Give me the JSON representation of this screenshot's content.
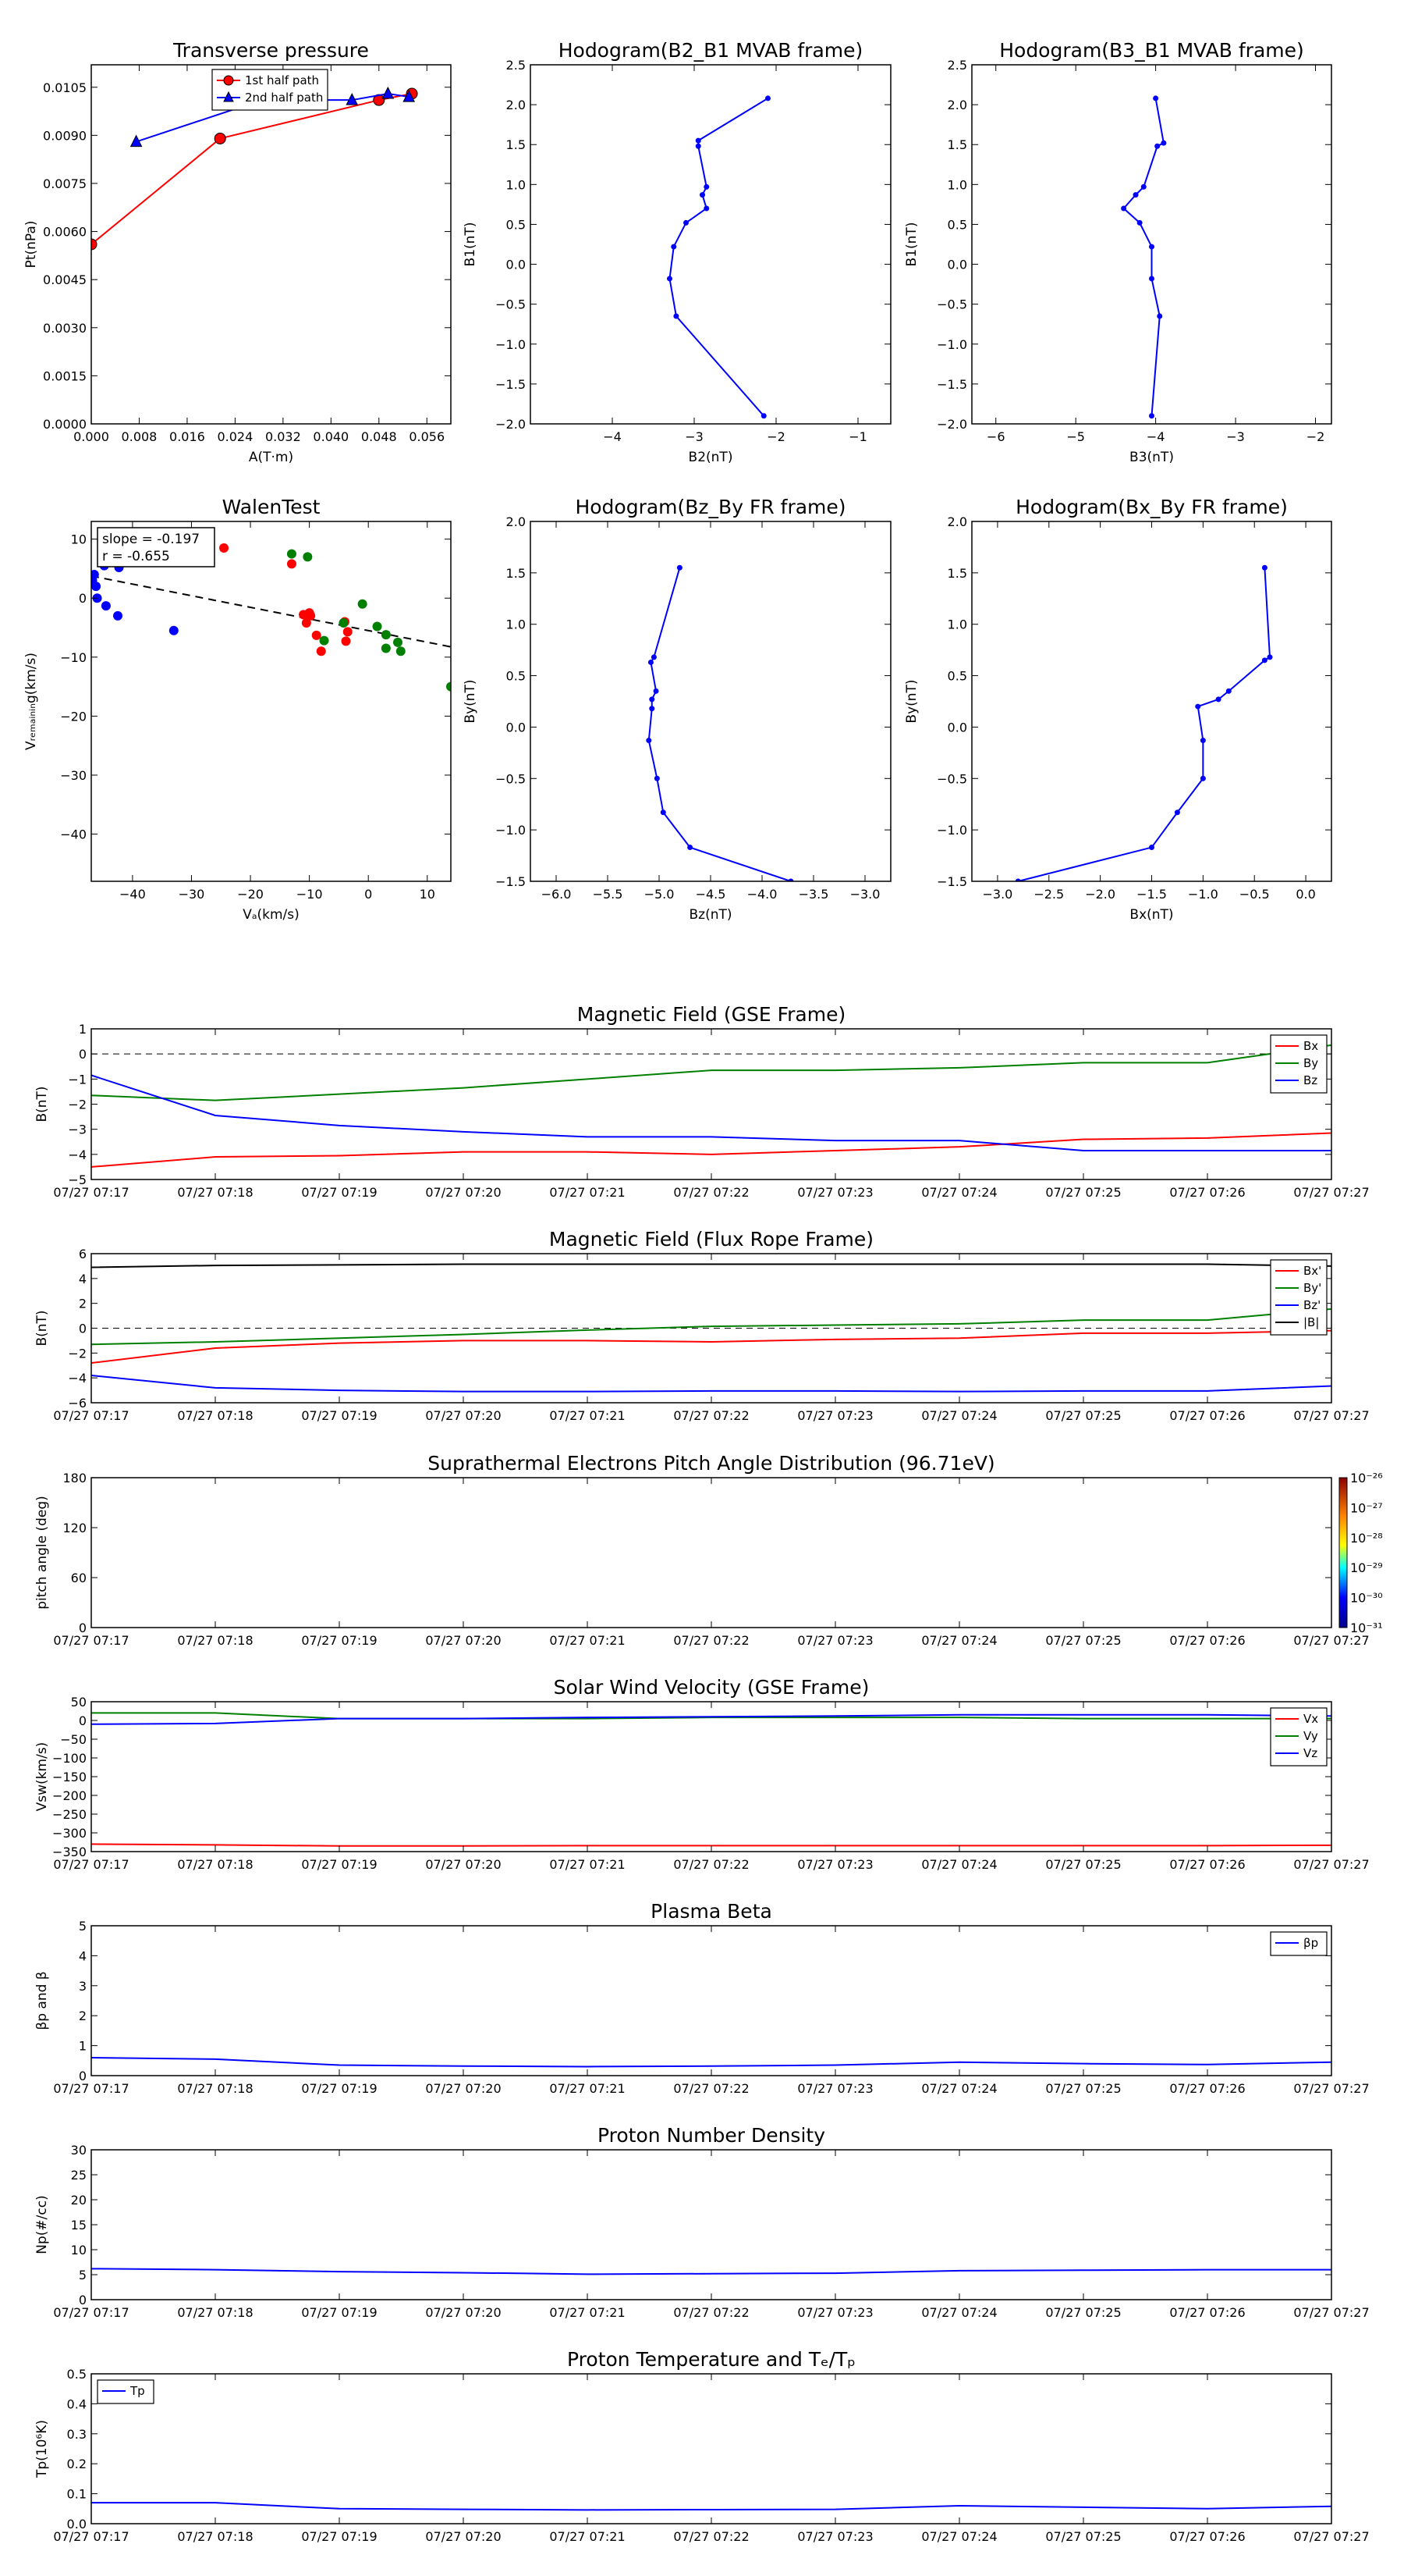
{
  "panels": [
    {
      "id": "transverse-pressure",
      "chart_data": {
        "type": "line",
        "title": "Transverse pressure",
        "xlabel": "A(T·m)",
        "ylabel": "Pt(nPa)",
        "xlim": [
          0,
          0.06
        ],
        "ylim": [
          0,
          0.0112
        ],
        "xticks": [
          0.0,
          0.008,
          0.016,
          0.024,
          0.032,
          0.04,
          0.048,
          0.056
        ],
        "xtick_labels": [
          "0.000",
          "0.008",
          "0.016",
          "0.024",
          "0.032",
          "0.040",
          "0.048",
          "0.056"
        ],
        "yticks": [
          0.0,
          0.0015,
          0.003,
          0.0045,
          0.006,
          0.0075,
          0.009,
          0.0105
        ],
        "ytick_labels": [
          "0.0000",
          "0.0015",
          "0.0030",
          "0.0045",
          "0.0060",
          "0.0075",
          "0.0090",
          "0.0105"
        ],
        "legend": "top-center",
        "series": [
          {
            "name": "1st half path",
            "color": "#ff0000",
            "marker": "circle",
            "x": [
              0.0,
              0.0215,
              0.048,
              0.0535
            ],
            "y": [
              0.0056,
              0.0089,
              0.0101,
              0.0103
            ]
          },
          {
            "name": "2nd half path",
            "color": "#0000ff",
            "marker": "triangle",
            "x": [
              0.0075,
              0.0285,
              0.0435,
              0.0495,
              0.053
            ],
            "y": [
              0.0088,
              0.0101,
              0.0101,
              0.0103,
              0.0102
            ]
          }
        ]
      }
    },
    {
      "id": "hodogram-b2-b1",
      "chart_data": {
        "type": "line",
        "title": "Hodogram(B2_B1 MVAB frame)",
        "xlabel": "B2(nT)",
        "ylabel": "B1(nT)",
        "xlim": [
          -5,
          -0.6
        ],
        "ylim": [
          -2,
          2.5
        ],
        "xticks": [
          -4,
          -3,
          -2,
          -1
        ],
        "xtick_labels": [
          "−4",
          "−3",
          "−2",
          "−1"
        ],
        "yticks": [
          -2,
          -1.5,
          -1,
          -0.5,
          0,
          0.5,
          1,
          1.5,
          2,
          2.5
        ],
        "ytick_labels": [
          "−2.0",
          "−1.5",
          "−1.0",
          "−0.5",
          "0.0",
          "0.5",
          "1.0",
          "1.5",
          "2.0",
          "2.5"
        ],
        "series": [
          {
            "name": "",
            "color": "#0000ff",
            "marker": "dot",
            "x": [
              -2.1,
              -2.95,
              -2.95,
              -2.85,
              -2.9,
              -2.85,
              -3.1,
              -3.25,
              -3.3,
              -3.22,
              -2.15
            ],
            "y": [
              2.08,
              1.55,
              1.48,
              0.97,
              0.87,
              0.7,
              0.52,
              0.22,
              -0.18,
              -0.65,
              -1.9
            ]
          }
        ]
      }
    },
    {
      "id": "hodogram-b3-b1",
      "chart_data": {
        "type": "line",
        "title": "Hodogram(B3_B1 MVAB frame)",
        "xlabel": "B3(nT)",
        "ylabel": "B1(nT)",
        "xlim": [
          -6.3,
          -1.8
        ],
        "ylim": [
          -2,
          2.5
        ],
        "xticks": [
          -6,
          -5,
          -4,
          -3,
          -2
        ],
        "xtick_labels": [
          "−6",
          "−5",
          "−4",
          "−3",
          "−2"
        ],
        "yticks": [
          -2,
          -1.5,
          -1,
          -0.5,
          0,
          0.5,
          1,
          1.5,
          2,
          2.5
        ],
        "ytick_labels": [
          "−2.0",
          "−1.5",
          "−1.0",
          "−0.5",
          "0.0",
          "0.5",
          "1.0",
          "1.5",
          "2.0",
          "2.5"
        ],
        "series": [
          {
            "name": "",
            "color": "#0000ff",
            "marker": "dot",
            "x": [
              -4.0,
              -3.9,
              -3.98,
              -4.15,
              -4.25,
              -4.4,
              -4.2,
              -4.05,
              -4.05,
              -3.95,
              -4.05
            ],
            "y": [
              2.08,
              1.52,
              1.48,
              0.97,
              0.87,
              0.7,
              0.52,
              0.22,
              -0.18,
              -0.65,
              -1.9
            ]
          }
        ]
      }
    },
    {
      "id": "walen-test",
      "chart_data": {
        "type": "scatter",
        "title": "WalenTest",
        "xlabel": "Vₐ(km/s)",
        "ylabel": "Vᵣₑₘₐᵢₙᵢₙg(km/s)",
        "xlim": [
          -47,
          14
        ],
        "ylim": [
          -48,
          13
        ],
        "xticks": [
          -40,
          -30,
          -20,
          -10,
          0,
          10
        ],
        "xtick_labels": [
          "−40",
          "−30",
          "−20",
          "−10",
          "0",
          "10"
        ],
        "yticks": [
          -40,
          -30,
          -20,
          -10,
          0,
          10
        ],
        "ytick_labels": [
          "−40",
          "−30",
          "−20",
          "−10",
          "0",
          "10"
        ],
        "annotation": [
          "slope = -0.197",
          "r = -0.655"
        ],
        "fit_line": {
          "slope": -0.197,
          "intercept": -5.5
        },
        "series": [
          {
            "name": "",
            "color": "#0000ff",
            "x": [
              -46.5,
              -46.8,
              -46.2,
              -46,
              -44.8,
              -44.5,
              -42.3,
              -42.5,
              -33
            ],
            "y": [
              4.0,
              3.0,
              2.0,
              0.0,
              5.5,
              -1.3,
              5.2,
              -3.0,
              -5.5
            ]
          },
          {
            "name": "",
            "color": "#ff0000",
            "x": [
              -24.5,
              -13,
              -11,
              -10,
              -9.8,
              -10.5,
              -8.8,
              -8,
              -4,
              -3.5,
              -3.8
            ],
            "y": [
              8.5,
              5.8,
              -2.8,
              -2.5,
              -3.0,
              -4.2,
              -6.3,
              -9.0,
              -4.0,
              -5.7,
              -7.3
            ]
          },
          {
            "name": "",
            "color": "#008000",
            "x": [
              -13,
              -10.3,
              -7.5,
              -1,
              1.5,
              3,
              5,
              5.5,
              3,
              -4.2,
              14
            ],
            "y": [
              7.5,
              7.0,
              -7.2,
              -1.0,
              -4.8,
              -6.2,
              -7.5,
              -9.0,
              -8.5,
              -4.2,
              -15
            ]
          }
        ]
      }
    },
    {
      "id": "hodogram-bz-by",
      "chart_data": {
        "type": "line",
        "title": "Hodogram(Bz_By FR frame)",
        "xlabel": "Bz(nT)",
        "ylabel": "By(nT)",
        "xlim": [
          -6.25,
          -2.75
        ],
        "ylim": [
          -1.5,
          2.0
        ],
        "xticks": [
          -6,
          -5.5,
          -5,
          -4.5,
          -4,
          -3.5,
          -3
        ],
        "xtick_labels": [
          "−6.0",
          "−5.5",
          "−5.0",
          "−4.5",
          "−4.0",
          "−3.5",
          "−3.0"
        ],
        "yticks": [
          -1.5,
          -1,
          -0.5,
          0,
          0.5,
          1,
          1.5,
          2
        ],
        "ytick_labels": [
          "−1.5",
          "−1.0",
          "−0.5",
          "0.0",
          "0.5",
          "1.0",
          "1.5",
          "2.0"
        ],
        "series": [
          {
            "name": "",
            "color": "#0000ff",
            "marker": "dot",
            "x": [
              -4.8,
              -5.05,
              -5.08,
              -5.03,
              -5.07,
              -5.07,
              -5.1,
              -5.02,
              -4.96,
              -4.7,
              -3.72
            ],
            "y": [
              1.55,
              0.68,
              0.63,
              0.35,
              0.27,
              0.18,
              -0.13,
              -0.5,
              -0.83,
              -1.17,
              -1.5
            ]
          }
        ]
      }
    },
    {
      "id": "hodogram-bx-by",
      "chart_data": {
        "type": "line",
        "title": "Hodogram(Bx_By FR frame)",
        "xlabel": "Bx(nT)",
        "ylabel": "By(nT)",
        "xlim": [
          -3.25,
          0.25
        ],
        "ylim": [
          -1.5,
          2.0
        ],
        "xticks": [
          -3,
          -2.5,
          -2,
          -1.5,
          -1,
          -0.5,
          0
        ],
        "xtick_labels": [
          "−3.0",
          "−2.5",
          "−2.0",
          "−1.5",
          "−1.0",
          "−0.5",
          "0.0"
        ],
        "yticks": [
          -1.5,
          -1,
          -0.5,
          0,
          0.5,
          1,
          1.5,
          2
        ],
        "ytick_labels": [
          "−1.5",
          "−1.0",
          "−0.5",
          "0.0",
          "0.5",
          "1.0",
          "1.5",
          "2.0"
        ],
        "series": [
          {
            "name": "",
            "color": "#0000ff",
            "marker": "dot",
            "x": [
              -0.4,
              -0.35,
              -0.4,
              -0.75,
              -0.85,
              -1.05,
              -1.0,
              -1.0,
              -1.25,
              -1.5,
              -2.8
            ],
            "y": [
              1.55,
              0.68,
              0.65,
              0.35,
              0.27,
              0.2,
              -0.13,
              -0.5,
              -0.83,
              -1.17,
              -1.5
            ]
          }
        ]
      }
    },
    {
      "id": "magnetic-field-gse",
      "chart_data": {
        "type": "line",
        "title": "Magnetic Field (GSE Frame)",
        "xlabel": "",
        "ylabel": "B(nT)",
        "ylim": [
          -5,
          1
        ],
        "yticks": [
          -5,
          -4,
          -3,
          -2,
          -1,
          0,
          1
        ],
        "ytick_labels": [
          "−5",
          "−4",
          "−3",
          "−2",
          "−1",
          "0",
          "1"
        ],
        "zero_line": true,
        "legend": "top-right",
        "series": [
          {
            "name": "Bx",
            "color": "#ff0000",
            "values": [
              -4.5,
              -4.1,
              -4.05,
              -3.9,
              -3.9,
              -4.0,
              -3.85,
              -3.7,
              -3.4,
              -3.35,
              -3.15
            ]
          },
          {
            "name": "By",
            "color": "#008000",
            "values": [
              -1.65,
              -1.85,
              -1.6,
              -1.35,
              -1.0,
              -0.65,
              -0.65,
              -0.55,
              -0.35,
              -0.35,
              0.35
            ]
          },
          {
            "name": "Bz",
            "color": "#0000ff",
            "values": [
              -0.85,
              -2.45,
              -2.85,
              -3.1,
              -3.3,
              -3.3,
              -3.45,
              -3.45,
              -3.85,
              -3.85,
              -3.85
            ]
          }
        ]
      }
    },
    {
      "id": "magnetic-field-fr",
      "chart_data": {
        "type": "line",
        "title": "Magnetic Field (Flux Rope Frame)",
        "xlabel": "",
        "ylabel": "B(nT)",
        "ylim": [
          -6,
          6
        ],
        "yticks": [
          -6,
          -4,
          -2,
          0,
          2,
          4,
          6
        ],
        "ytick_labels": [
          "−6",
          "−4",
          "−2",
          "0",
          "2",
          "4",
          "6"
        ],
        "zero_line": true,
        "legend": "top-right",
        "series": [
          {
            "name": "Bx'",
            "color": "#ff0000",
            "values": [
              -2.8,
              -1.6,
              -1.2,
              -1.0,
              -1.0,
              -1.1,
              -0.9,
              -0.8,
              -0.4,
              -0.4,
              -0.2
            ]
          },
          {
            "name": "By'",
            "color": "#008000",
            "values": [
              -1.3,
              -1.1,
              -0.8,
              -0.5,
              -0.15,
              0.15,
              0.25,
              0.35,
              0.65,
              0.65,
              1.55
            ]
          },
          {
            "name": "Bz'",
            "color": "#0000ff",
            "values": [
              -3.8,
              -4.8,
              -5.0,
              -5.1,
              -5.1,
              -5.05,
              -5.05,
              -5.1,
              -5.05,
              -5.05,
              -4.65
            ]
          },
          {
            "name": "|B|",
            "color": "#000000",
            "values": [
              4.9,
              5.05,
              5.1,
              5.15,
              5.15,
              5.15,
              5.15,
              5.15,
              5.15,
              5.15,
              5.0
            ]
          }
        ]
      }
    },
    {
      "id": "pitch-angle",
      "chart_data": {
        "type": "heatmap",
        "title": "Suprathermal Electrons Pitch Angle Distribution (96.71eV)",
        "xlabel": "",
        "ylabel": "pitch angle (deg)",
        "ylim": [
          0,
          180
        ],
        "yticks": [
          0,
          60,
          120,
          180
        ],
        "ytick_labels": [
          "0",
          "60",
          "120",
          "180"
        ],
        "colorbar": {
          "ticks": [
            "10⁻²⁶",
            "10⁻²⁷",
            "10⁻²⁸",
            "10⁻²⁹",
            "10⁻³⁰",
            "10⁻³¹"
          ]
        },
        "series": []
      }
    },
    {
      "id": "solar-wind-velocity",
      "chart_data": {
        "type": "line",
        "title": "Solar Wind Velocity (GSE Frame)",
        "xlabel": "",
        "ylabel": "Vsw(km/s)",
        "ylim": [
          -350,
          50
        ],
        "yticks": [
          -350,
          -300,
          -250,
          -200,
          -150,
          -100,
          -50,
          0,
          50
        ],
        "ytick_labels": [
          "−350",
          "−300",
          "−250",
          "−200",
          "−150",
          "−100",
          "−50",
          "0",
          "50"
        ],
        "legend": "top-right",
        "series": [
          {
            "name": "Vx",
            "color": "#ff0000",
            "values": [
              -330,
              -332,
              -335,
              -335,
              -334,
              -334,
              -334,
              -334,
              -334,
              -334,
              -333
            ]
          },
          {
            "name": "Vy",
            "color": "#008000",
            "values": [
              20,
              20,
              5,
              5,
              5,
              8,
              8,
              8,
              5,
              5,
              5
            ]
          },
          {
            "name": "Vz",
            "color": "#0000ff",
            "values": [
              -10,
              -8,
              5,
              5,
              8,
              10,
              12,
              15,
              15,
              15,
              12
            ]
          }
        ]
      }
    },
    {
      "id": "plasma-beta",
      "chart_data": {
        "type": "line",
        "title": "Plasma Beta",
        "xlabel": "",
        "ylabel": "βp and β",
        "ylim": [
          0,
          5
        ],
        "yticks": [
          0,
          1,
          2,
          3,
          4,
          5
        ],
        "ytick_labels": [
          "0",
          "1",
          "2",
          "3",
          "4",
          "5"
        ],
        "legend": "top-right",
        "series": [
          {
            "name": "βp",
            "color": "#0000ff",
            "values": [
              0.6,
              0.55,
              0.35,
              0.32,
              0.3,
              0.32,
              0.35,
              0.45,
              0.4,
              0.37,
              0.45
            ]
          }
        ]
      }
    },
    {
      "id": "proton-density",
      "chart_data": {
        "type": "line",
        "title": "Proton Number Density",
        "xlabel": "",
        "ylabel": "Np(#/cc)",
        "ylim": [
          0,
          30
        ],
        "yticks": [
          0,
          5,
          10,
          15,
          20,
          25,
          30
        ],
        "ytick_labels": [
          "0",
          "5",
          "10",
          "15",
          "20",
          "25",
          "30"
        ],
        "series": [
          {
            "name": "",
            "color": "#0000ff",
            "values": [
              6.2,
              6.0,
              5.6,
              5.4,
              5.1,
              5.2,
              5.3,
              5.8,
              5.9,
              6.0,
              6.0
            ]
          }
        ]
      }
    },
    {
      "id": "proton-temperature",
      "chart_data": {
        "type": "line",
        "title": "Proton Temperature and Tₑ/Tₚ",
        "xlabel": "",
        "ylabel": "Tp(10⁶K)",
        "ylim": [
          0,
          0.5
        ],
        "yticks": [
          0,
          0.1,
          0.2,
          0.3,
          0.4,
          0.5
        ],
        "ytick_labels": [
          "0.0",
          "0.1",
          "0.2",
          "0.3",
          "0.4",
          "0.5"
        ],
        "legend": "top-left",
        "series": [
          {
            "name": "Tp",
            "color": "#0000ff",
            "values": [
              0.07,
              0.07,
              0.05,
              0.048,
              0.046,
              0.047,
              0.048,
              0.06,
              0.055,
              0.05,
              0.058
            ]
          }
        ]
      }
    }
  ],
  "time_axis": {
    "labels": [
      "07/27 07:17",
      "07/27 07:18",
      "07/27 07:19",
      "07/27 07:20",
      "07/27 07:21",
      "07/27 07:22",
      "07/27 07:23",
      "07/27 07:24",
      "07/27 07:25",
      "07/27 07:26",
      "07/27 07:27"
    ]
  }
}
